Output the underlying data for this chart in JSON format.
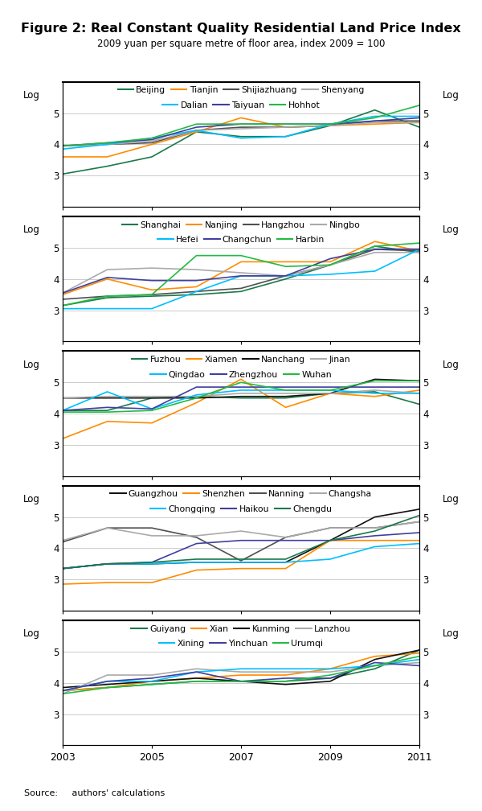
{
  "title": "Figure 2: Real Constant Quality Residential Land Price Index",
  "subtitle": "2009 yuan per square metre of floor area, index 2009 = 100",
  "source": "Source:     authors' calculations",
  "years": [
    2003,
    2004,
    2005,
    2006,
    2007,
    2008,
    2009,
    2010,
    2011
  ],
  "ylim": [
    2,
    6
  ],
  "yticks": [
    3,
    4,
    5
  ],
  "panels": [
    {
      "cities": [
        "Beijing",
        "Tianjin",
        "Shijiazhuang",
        "Shenyang",
        "Dalian",
        "Taiyuan",
        "Hohhot"
      ],
      "colors": [
        "#1a7a4a",
        "#ff8c00",
        "#505050",
        "#aaaaaa",
        "#00bfff",
        "#4040a0",
        "#22bb44"
      ],
      "data": {
        "Beijing": [
          3.05,
          3.3,
          3.6,
          4.4,
          4.25,
          4.25,
          4.6,
          5.1,
          4.55
        ],
        "Tianjin": [
          3.6,
          3.6,
          4.0,
          4.4,
          4.85,
          4.55,
          4.6,
          4.65,
          4.7
        ],
        "Shijiazhuang": [
          3.95,
          4.0,
          4.05,
          4.45,
          4.55,
          4.55,
          4.6,
          4.75,
          4.75
        ],
        "Shenyang": [
          3.95,
          4.0,
          4.1,
          4.45,
          4.5,
          4.55,
          4.6,
          4.7,
          4.7
        ],
        "Dalian": [
          3.85,
          4.0,
          4.2,
          4.45,
          4.2,
          4.25,
          4.65,
          4.9,
          4.9
        ],
        "Taiyuan": [
          3.95,
          4.05,
          4.15,
          4.55,
          4.65,
          4.65,
          4.65,
          4.75,
          4.85
        ],
        "Hohhot": [
          3.95,
          4.05,
          4.2,
          4.65,
          4.65,
          4.65,
          4.65,
          4.85,
          5.25
        ]
      }
    },
    {
      "cities": [
        "Shanghai",
        "Nanjing",
        "Hangzhou",
        "Ningbo",
        "Hefei",
        "Changchun",
        "Harbin"
      ],
      "colors": [
        "#1a7a4a",
        "#ff8c00",
        "#505050",
        "#aaaaaa",
        "#00bfff",
        "#4040a0",
        "#22bb44"
      ],
      "data": {
        "Shanghai": [
          3.15,
          3.4,
          3.45,
          3.5,
          3.6,
          4.0,
          4.45,
          5.05,
          4.85
        ],
        "Nanjing": [
          3.5,
          4.0,
          3.65,
          3.75,
          4.55,
          4.55,
          4.55,
          5.2,
          4.9
        ],
        "Hangzhou": [
          3.35,
          3.45,
          3.5,
          3.6,
          3.7,
          4.1,
          4.45,
          4.95,
          4.9
        ],
        "Ningbo": [
          3.55,
          4.3,
          4.35,
          4.3,
          4.2,
          4.1,
          4.45,
          4.85,
          4.85
        ],
        "Hefei": [
          3.05,
          3.05,
          3.05,
          3.6,
          4.1,
          4.1,
          4.15,
          4.25,
          4.95
        ],
        "Changchun": [
          3.55,
          4.05,
          3.95,
          3.95,
          4.1,
          4.1,
          4.65,
          4.95,
          4.95
        ],
        "Harbin": [
          3.15,
          3.45,
          3.5,
          4.75,
          4.75,
          4.4,
          4.45,
          5.05,
          5.15
        ]
      }
    },
    {
      "cities": [
        "Fuzhou",
        "Xiamen",
        "Nanchang",
        "Jinan",
        "Qingdao",
        "Zhengzhou",
        "Wuhan"
      ],
      "colors": [
        "#1a7a4a",
        "#ff8c00",
        "#111111",
        "#aaaaaa",
        "#00bfff",
        "#4040a0",
        "#22bb44"
      ],
      "data": {
        "Fuzhou": [
          4.1,
          4.1,
          4.5,
          4.55,
          4.5,
          4.5,
          4.65,
          4.7,
          4.3
        ],
        "Xiamen": [
          3.2,
          3.75,
          3.7,
          4.35,
          5.1,
          4.2,
          4.65,
          4.55,
          4.75
        ],
        "Nanchang": [
          4.5,
          4.5,
          4.5,
          4.5,
          4.55,
          4.55,
          4.65,
          5.1,
          5.05
        ],
        "Jinan": [
          4.5,
          4.55,
          4.55,
          4.55,
          4.65,
          4.65,
          4.65,
          4.75,
          4.65
        ],
        "Qingdao": [
          4.1,
          4.7,
          4.15,
          4.6,
          4.75,
          4.75,
          4.75,
          4.65,
          4.65
        ],
        "Zhengzhou": [
          4.1,
          4.2,
          4.15,
          4.85,
          4.85,
          4.85,
          4.85,
          4.85,
          4.85
        ],
        "Wuhan": [
          4.05,
          4.05,
          4.1,
          4.5,
          5.0,
          4.75,
          4.75,
          5.05,
          5.05
        ]
      }
    },
    {
      "cities": [
        "Guangzhou",
        "Shenzhen",
        "Nanning",
        "Changsha",
        "Chongqing",
        "Haikou",
        "Chengdu"
      ],
      "colors": [
        "#111111",
        "#ff8c00",
        "#505050",
        "#aaaaaa",
        "#00bfff",
        "#4040a0",
        "#1a7a4a"
      ],
      "data": {
        "Guangzhou": [
          3.35,
          3.5,
          3.5,
          3.55,
          3.55,
          3.55,
          4.25,
          5.0,
          5.25
        ],
        "Shenzhen": [
          2.85,
          2.9,
          2.9,
          3.3,
          3.35,
          3.35,
          4.25,
          4.25,
          4.25
        ],
        "Nanning": [
          4.2,
          4.65,
          4.65,
          4.35,
          3.6,
          4.35,
          4.65,
          4.65,
          4.85
        ],
        "Changsha": [
          4.25,
          4.65,
          4.4,
          4.4,
          4.55,
          4.35,
          4.65,
          4.65,
          4.85
        ],
        "Chongqing": [
          3.35,
          3.5,
          3.5,
          3.55,
          3.55,
          3.55,
          3.65,
          4.05,
          4.15
        ],
        "Haikou": [
          3.35,
          3.5,
          3.55,
          4.15,
          4.25,
          4.25,
          4.25,
          4.4,
          4.5
        ],
        "Chengdu": [
          3.35,
          3.5,
          3.55,
          3.65,
          3.65,
          3.65,
          4.25,
          4.55,
          5.05
        ]
      }
    },
    {
      "cities": [
        "Guiyang",
        "Xian",
        "Kunming",
        "Lanzhou",
        "Xining",
        "Yinchuan",
        "Urumqi"
      ],
      "colors": [
        "#1a7a4a",
        "#ff8c00",
        "#111111",
        "#aaaaaa",
        "#00bfff",
        "#4040a0",
        "#22bb44"
      ],
      "data": {
        "Guiyang": [
          3.75,
          3.85,
          3.95,
          4.05,
          4.05,
          4.05,
          4.15,
          4.45,
          5.05
        ],
        "Xian": [
          3.75,
          3.85,
          4.05,
          4.15,
          4.25,
          4.25,
          4.45,
          4.85,
          4.95
        ],
        "Kunming": [
          3.85,
          3.95,
          4.05,
          4.15,
          4.05,
          3.95,
          4.05,
          4.75,
          5.05
        ],
        "Lanzhou": [
          3.65,
          4.25,
          4.25,
          4.45,
          4.35,
          4.35,
          4.35,
          4.55,
          4.65
        ],
        "Xining": [
          3.75,
          4.05,
          4.05,
          4.35,
          4.45,
          4.45,
          4.45,
          4.55,
          4.75
        ],
        "Yinchuan": [
          3.75,
          4.05,
          4.15,
          4.35,
          4.05,
          4.15,
          4.15,
          4.65,
          4.55
        ],
        "Urumqi": [
          3.65,
          3.85,
          3.95,
          4.05,
          4.05,
          4.05,
          4.25,
          4.55,
          4.85
        ]
      }
    }
  ]
}
